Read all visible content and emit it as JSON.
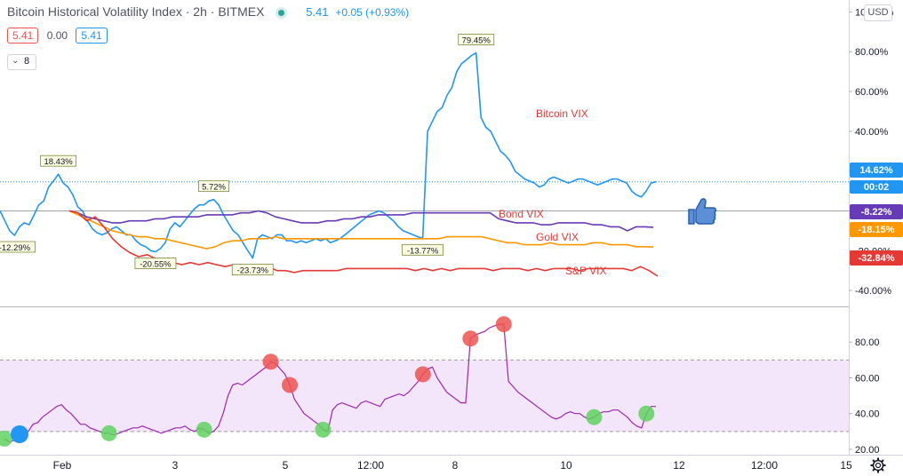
{
  "header": {
    "title": "Bitcoin Historical Volatility Index · 2h · BITMEX",
    "last_value": "5.41",
    "change": "+0.05 (+0.93%)",
    "open": "5.41",
    "mid": "0.00",
    "close": "5.41",
    "collapsed_count": "8"
  },
  "currency_button": "USD",
  "icons": {
    "thumbs_up": "thumbs-up-icon",
    "settings": "gear-icon",
    "collapse": "chevron-down-icon",
    "status": "status-dot-icon"
  },
  "colors": {
    "bitcoin": "#2196f3",
    "bond": "#673ab7",
    "gold": "#ff9800",
    "sp": "#e53935",
    "rsi": "#9c27b0",
    "band": "#e1bee7"
  },
  "chart_data": [
    {
      "type": "line",
      "x_ticks": [
        "Feb",
        "3",
        "5",
        "12:00",
        "8",
        "10",
        "12",
        "12:00",
        "15"
      ],
      "y_ticks": [
        "-40.00%",
        "-20.00%",
        "0.00%",
        "20.00%",
        "40.00%",
        "60.00%",
        "80.00%",
        "100.00%"
      ],
      "ylim": [
        -48,
        106
      ],
      "series": [
        {
          "name": "Bitcoin VIX",
          "last_label": "14.62%",
          "countdown": "00:02",
          "values": [
            0,
            -5,
            -10,
            -12.29,
            -8,
            -6,
            -7,
            -2,
            3,
            5,
            12,
            15,
            18.43,
            14,
            12,
            8,
            2,
            0,
            -5,
            -9,
            -11,
            -12,
            -11,
            -9,
            -8,
            -10,
            -12,
            -12,
            -15,
            -17,
            -18,
            -20,
            -20.55,
            -19,
            -16,
            -9,
            -6,
            -8,
            -5,
            -2,
            1,
            3,
            3,
            5,
            5.72,
            3,
            -2,
            -6,
            -10,
            -12,
            -16,
            -20,
            -23.73,
            -14,
            -12,
            -13,
            -14,
            -12,
            -12,
            -15,
            -15,
            -16,
            -15,
            -16,
            -15,
            -14,
            -15,
            -14,
            -16,
            -15,
            -14,
            -12,
            -10,
            -8,
            -6,
            -4,
            -2,
            -1,
            0,
            -1,
            -3,
            -5,
            -8,
            -10,
            -11,
            -12,
            -13,
            -13.77,
            40,
            45,
            50,
            52,
            58,
            62,
            70,
            74,
            76,
            78,
            79.45,
            47,
            42,
            40,
            35,
            30,
            28,
            25,
            20,
            18,
            16,
            15,
            14,
            12,
            13,
            16,
            17,
            16,
            15,
            14,
            15,
            16,
            16,
            15,
            14,
            13,
            14,
            15,
            16,
            16,
            15,
            14,
            10,
            8,
            7,
            10,
            14,
            14.62
          ]
        },
        {
          "name": "Bond VIX",
          "last_label": "-8.22%",
          "values": [
            0,
            -1,
            -3,
            -4,
            -5,
            -6,
            -6,
            -5,
            -5,
            -5,
            -4,
            -4,
            -3,
            -3,
            -3,
            -3,
            -2,
            -2,
            -2,
            -2,
            -1,
            -1,
            0,
            -1,
            -3,
            -4,
            -5,
            -6,
            -6,
            -6,
            -5,
            -5,
            -4,
            -4,
            -3,
            -3,
            -2,
            -2,
            -2,
            -2,
            -1,
            -1,
            -1,
            -1,
            -1,
            -1,
            -1,
            -1,
            -1,
            -1,
            -4,
            -5,
            -6,
            -6,
            -6,
            -7,
            -7,
            -6,
            -6,
            -6,
            -6,
            -7,
            -7,
            -8,
            -8,
            -10,
            -8,
            -8,
            -8.22
          ]
        },
        {
          "name": "Gold VIX",
          "last_label": "-18.15%",
          "values": [
            0,
            -2,
            -4,
            -6,
            -8,
            -10,
            -11,
            -12,
            -13,
            -13,
            -14,
            -14,
            -15,
            -16,
            -17,
            -18,
            -19,
            -18,
            -16,
            -15,
            -15,
            -14,
            -14,
            -14,
            -13,
            -14,
            -14,
            -14,
            -14,
            -14,
            -14,
            -14,
            -14,
            -14,
            -14,
            -14,
            -14,
            -14,
            -14,
            -14,
            -14,
            -14,
            -14,
            -14,
            -13,
            -13,
            -13,
            -13,
            -13,
            -14,
            -15,
            -16,
            -16,
            -17,
            -17,
            -17,
            -16,
            -17,
            -17,
            -17,
            -17,
            -16,
            -16,
            -17,
            -17,
            -17,
            -18,
            -18,
            -18.15
          ]
        },
        {
          "name": "S&P VIX",
          "last_label": "-32.84%",
          "values": [
            0,
            -1,
            -5,
            -3,
            -8,
            -14,
            -18,
            -21,
            -23,
            -22,
            -24,
            -26,
            -26,
            -27,
            -26,
            -27,
            -26,
            -27,
            -28,
            -27,
            -28,
            -28,
            -28,
            -28,
            -30,
            -30,
            -31,
            -30,
            -30,
            -30,
            -30,
            -30,
            -29,
            -29,
            -29,
            -29,
            -29,
            -29,
            -29,
            -29,
            -30,
            -29,
            -30,
            -29,
            -30,
            -29,
            -29,
            -29,
            -29,
            -30,
            -29,
            -29,
            -29,
            -30,
            -29,
            -30,
            -29,
            -29,
            -29,
            -30,
            -29,
            -29,
            -29,
            -29,
            -29,
            -30,
            -28,
            -30,
            -32.84
          ]
        }
      ],
      "extreme_labels": [
        "-12.29%",
        "18.43%",
        "-20.55%",
        "5.72%",
        "-23.73%",
        "-13.77%",
        "79.45%"
      ]
    },
    {
      "type": "line",
      "y_ticks": [
        "20.00",
        "40.00",
        "60.00",
        "80.00"
      ],
      "ylim": [
        17,
        99
      ],
      "band": [
        30,
        70
      ],
      "values": [
        26,
        24,
        25,
        27,
        28,
        30,
        34,
        35,
        38,
        40,
        42,
        44,
        45,
        42,
        40,
        37,
        34,
        34,
        32,
        31,
        30,
        29,
        29,
        28,
        29,
        30,
        31,
        32,
        32,
        33,
        32,
        31,
        30,
        29,
        30,
        31,
        32,
        32,
        33,
        31,
        30,
        32,
        31,
        29,
        30,
        33,
        40,
        50,
        56,
        57,
        56,
        58,
        60,
        62,
        64,
        66,
        69,
        68,
        65,
        62,
        56,
        48,
        44,
        40,
        38,
        36,
        34,
        31,
        30,
        42,
        45,
        46,
        45,
        44,
        43,
        46,
        47,
        46,
        45,
        44,
        48,
        49,
        50,
        51,
        50,
        52,
        55,
        58,
        62,
        65,
        66,
        60,
        56,
        52,
        50,
        48,
        46,
        46,
        82,
        84,
        85,
        86,
        88,
        89,
        90,
        90,
        58,
        55,
        52,
        50,
        48,
        46,
        44,
        42,
        40,
        38,
        37,
        38,
        40,
        41,
        40,
        40,
        38,
        37,
        38,
        40,
        41,
        41,
        42,
        42,
        40,
        38,
        35,
        33,
        32,
        40,
        44,
        44
      ],
      "overbought_idx": [
        56,
        60,
        88,
        98,
        105
      ],
      "oversold_idx": [
        0,
        22,
        42,
        67,
        124,
        135
      ]
    }
  ]
}
